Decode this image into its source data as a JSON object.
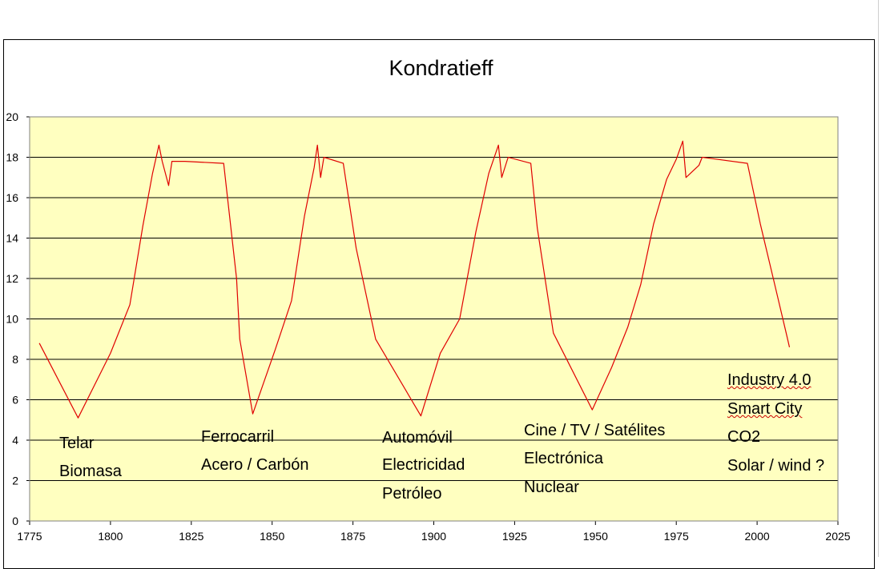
{
  "chart_data": {
    "type": "line",
    "title": "Kondratieff",
    "xlim": [
      1775,
      2025
    ],
    "ylim": [
      0,
      20
    ],
    "x_ticks": [
      "1775",
      "1800",
      "1825",
      "1850",
      "1875",
      "1900",
      "1925",
      "1950",
      "1975",
      "2000",
      "2025"
    ],
    "y_ticks": [
      "0",
      "2",
      "4",
      "6",
      "8",
      "10",
      "12",
      "14",
      "16",
      "18",
      "20"
    ],
    "grid": "horizontal",
    "plot_background": "#ffffc0",
    "line_color": "#e00000",
    "series": [
      {
        "points": [
          [
            1778,
            8.8
          ],
          [
            1790,
            5.1
          ],
          [
            1800,
            8.3
          ],
          [
            1806,
            10.7
          ],
          [
            1810,
            14.6
          ],
          [
            1813,
            17.2
          ],
          [
            1815,
            18.6
          ],
          [
            1816,
            17.8
          ],
          [
            1818,
            16.6
          ],
          [
            1819,
            17.8
          ],
          [
            1823,
            17.8
          ],
          [
            1835,
            17.7
          ],
          [
            1839,
            12.0
          ],
          [
            1840,
            9.0
          ],
          [
            1844,
            5.3
          ],
          [
            1851,
            8.5
          ],
          [
            1856,
            10.9
          ],
          [
            1860,
            15.1
          ],
          [
            1863,
            17.5
          ],
          [
            1864,
            18.6
          ],
          [
            1865,
            17.0
          ],
          [
            1866,
            18.0
          ],
          [
            1872,
            17.7
          ],
          [
            1876,
            13.5
          ],
          [
            1882,
            9.0
          ],
          [
            1896,
            5.2
          ],
          [
            1902,
            8.3
          ],
          [
            1908,
            10.0
          ],
          [
            1913,
            14.3
          ],
          [
            1917,
            17.2
          ],
          [
            1920,
            18.6
          ],
          [
            1921,
            17.0
          ],
          [
            1923,
            18.0
          ],
          [
            1930,
            17.7
          ],
          [
            1932,
            14.5
          ],
          [
            1937,
            9.3
          ],
          [
            1949,
            5.5
          ],
          [
            1955,
            7.6
          ],
          [
            1960,
            9.6
          ],
          [
            1964,
            11.7
          ],
          [
            1968,
            14.7
          ],
          [
            1972,
            16.9
          ],
          [
            1975,
            17.9
          ],
          [
            1977,
            18.8
          ],
          [
            1978,
            17.0
          ],
          [
            1982,
            17.6
          ],
          [
            1983,
            18.0
          ],
          [
            1997,
            17.7
          ],
          [
            2001,
            14.7
          ],
          [
            2005,
            12.0
          ],
          [
            2009,
            9.3
          ],
          [
            2010,
            8.6
          ]
        ]
      }
    ]
  },
  "annotations": [
    {
      "id": "wave1",
      "lines": [
        "Telar",
        "Biomasa"
      ]
    },
    {
      "id": "wave2",
      "lines": [
        "Ferrocarril",
        "Acero / Carbón"
      ]
    },
    {
      "id": "wave3",
      "lines": [
        "Automóvil",
        "Electricidad",
        "Petróleo"
      ]
    },
    {
      "id": "wave4",
      "lines": [
        "Cine / TV / Satélites",
        "Electrónica",
        "Nuclear"
      ]
    },
    {
      "id": "wave5",
      "lines": [
        "Industry 4.0",
        "Smart City",
        "CO2",
        "Solar / wind ?"
      ]
    }
  ]
}
